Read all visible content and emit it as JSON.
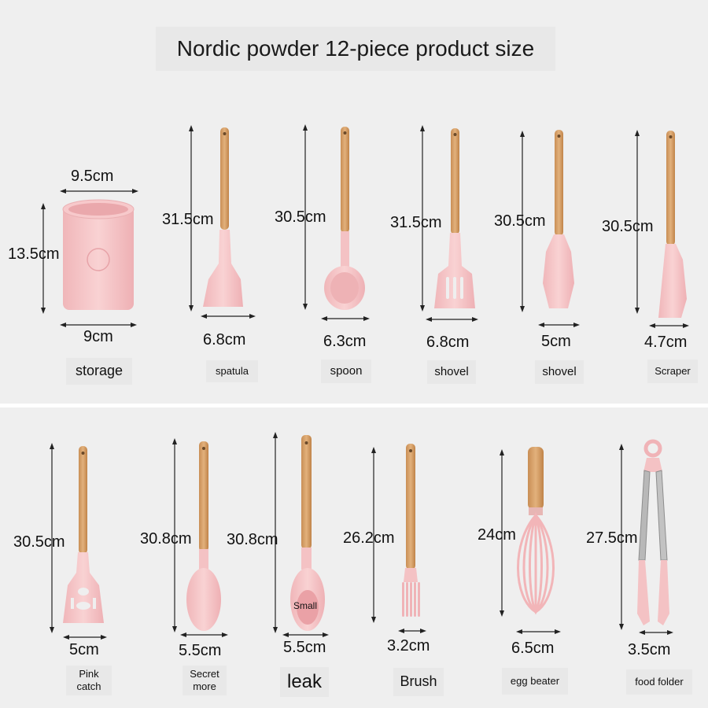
{
  "title": "Nordic powder 12-piece product size",
  "colors": {
    "pink": "#f4c2c4",
    "pink_dark": "#e9a7ab",
    "wood": "#d7a36b",
    "wood_dark": "#b98450",
    "background": "#efefef"
  },
  "top_row": [
    {
      "id": "storage",
      "label": "storage",
      "height": "13.5cm",
      "width_top": "9.5cm",
      "width": "9cm"
    },
    {
      "id": "spatula",
      "label": "spatula",
      "height": "31.5cm",
      "width": "6.8cm"
    },
    {
      "id": "spoon",
      "label": "spoon",
      "height": "30.5cm",
      "width": "6.3cm"
    },
    {
      "id": "shovel1",
      "label": "shovel",
      "height": "31.5cm",
      "width": "6.8cm"
    },
    {
      "id": "shovel2",
      "label": "shovel",
      "height": "30.5cm",
      "width": "5cm"
    },
    {
      "id": "scraper",
      "label": "Scraper",
      "height": "30.5cm",
      "width": "4.7cm"
    }
  ],
  "bottom_row": [
    {
      "id": "pink_catch",
      "label": "Pink catch",
      "height": "30.5cm",
      "width": "5cm"
    },
    {
      "id": "secret_more",
      "label": "Secret more",
      "height": "30.8cm",
      "width": "5.5cm"
    },
    {
      "id": "leak",
      "label": "leak",
      "height": "30.8cm",
      "width": "5.5cm",
      "tag": "Small"
    },
    {
      "id": "brush",
      "label": "Brush",
      "height": "26.2cm",
      "width": "3.2cm"
    },
    {
      "id": "egg_beater",
      "label": "egg beater",
      "height": "24cm",
      "width": "6.5cm"
    },
    {
      "id": "food_folder",
      "label": "food folder",
      "height": "27.5cm",
      "width": "3.5cm"
    }
  ]
}
